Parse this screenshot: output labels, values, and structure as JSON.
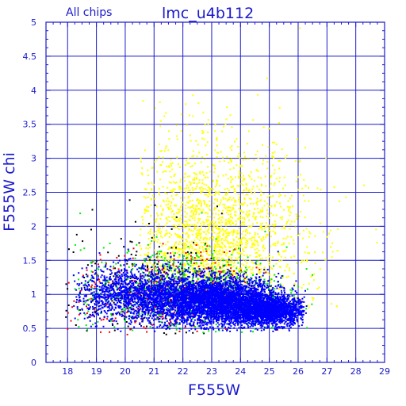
{
  "chart_data": {
    "type": "scatter",
    "title": "lmc_u4b112",
    "subtitle": "All chips",
    "xlabel": "F555W",
    "ylabel": "F555W chi",
    "xlim": [
      17.25,
      29
    ],
    "ylim": [
      0,
      5
    ],
    "x_ticks": [
      18,
      19,
      20,
      21,
      22,
      23,
      24,
      25,
      26,
      27,
      28,
      29
    ],
    "y_ticks": [
      0,
      0.5,
      1,
      1.5,
      2,
      2.5,
      3,
      3.5,
      4,
      4.5,
      5
    ],
    "x_tick_labels": [
      "18",
      "19",
      "20",
      "21",
      "22",
      "23",
      "24",
      "25",
      "26",
      "27",
      "28",
      "29"
    ],
    "y_tick_labels": [
      "0",
      "0.5",
      "1",
      "1.5",
      "2",
      "2.5",
      "3",
      "3.5",
      "4",
      "4.5",
      "5"
    ],
    "grid": true,
    "colors": {
      "frame": "#1a1acd",
      "grid": "#1a1acd",
      "title": "#1a1acd",
      "axis_label": "#1a1acd",
      "tick_label": "#1a1acd"
    },
    "series": [
      {
        "color": "#ffff00",
        "clusters": [
          {
            "x_mean": 23.0,
            "x_sd": 1.6,
            "y_mean": 1.7,
            "y_sd": 0.75,
            "x_min": 20.5,
            "x_max": 28.8,
            "y_min": 0.8,
            "y_max": 4.95,
            "count": 2200
          }
        ]
      },
      {
        "color": "#000000",
        "clusters": [
          {
            "x_mean": 20.5,
            "x_sd": 1.4,
            "y_mean": 1.1,
            "y_sd": 0.5,
            "x_min": 17.8,
            "x_max": 26.5,
            "y_min": 0.4,
            "y_max": 4.6,
            "count": 170
          }
        ]
      },
      {
        "color": "#ff0000",
        "clusters": [
          {
            "x_mean": 21.5,
            "x_sd": 1.6,
            "y_mean": 1.0,
            "y_sd": 0.3,
            "x_min": 18.0,
            "x_max": 26.3,
            "y_min": 0.4,
            "y_max": 2.8,
            "count": 450
          }
        ]
      },
      {
        "color": "#00ee00",
        "clusters": [
          {
            "x_mean": 22.0,
            "x_sd": 1.8,
            "y_mean": 1.05,
            "y_sd": 0.32,
            "x_min": 18.0,
            "x_max": 26.5,
            "y_min": 0.4,
            "y_max": 2.9,
            "count": 800
          }
        ]
      },
      {
        "color": "#0000ff",
        "clusters": [
          {
            "x_mean": 20.6,
            "x_sd": 1.2,
            "y_mean": 1.0,
            "y_sd": 0.2,
            "x_min": 18.2,
            "x_max": 26.3,
            "y_min": 0.45,
            "y_max": 2.4,
            "count": 1600
          },
          {
            "x_mean": 23.2,
            "x_sd": 1.1,
            "y_mean": 0.9,
            "y_sd": 0.17,
            "x_min": 18.5,
            "x_max": 26.3,
            "y_min": 0.45,
            "y_max": 2.0,
            "count": 3800
          },
          {
            "x_mean": 25.0,
            "x_sd": 0.65,
            "y_mean": 0.75,
            "y_sd": 0.1,
            "x_min": 22.0,
            "x_max": 26.2,
            "y_min": 0.45,
            "y_max": 1.5,
            "count": 1800
          }
        ]
      }
    ]
  }
}
